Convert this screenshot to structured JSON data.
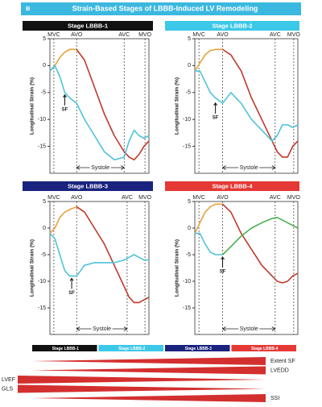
{
  "header": {
    "letter": "B",
    "title": "Strain-Based Stages of LBBB-Induced LV Remodeling",
    "color": "#3bb8e0"
  },
  "chart_data": [
    {
      "type": "line",
      "title": "Stage LBBB-1",
      "title_color": "#111111",
      "ylabel": "Longitudinal Strain (%)",
      "x": [
        0,
        5,
        10,
        15,
        20,
        27,
        35,
        45,
        55,
        65,
        75,
        80,
        85,
        90,
        95,
        100
      ],
      "xlim": [
        0,
        100
      ],
      "ylim": [
        -20,
        5
      ],
      "yticks": [
        5,
        0,
        -5,
        -10,
        -15
      ],
      "events": [
        {
          "label": "MVC",
          "x": 4
        },
        {
          "label": "AVO",
          "x": 27
        },
        {
          "label": "AVC",
          "x": 75
        },
        {
          "label": "MVO",
          "x": 96
        }
      ],
      "span": "Systole",
      "series": [
        {
          "color": "#e8a23a",
          "values": [
            -1,
            0,
            1.5,
            2.5,
            3,
            3,
            null,
            null,
            null,
            null,
            null,
            null,
            null,
            null,
            null,
            null
          ]
        },
        {
          "color": "#c0392b",
          "values": [
            null,
            null,
            null,
            null,
            null,
            3,
            1,
            -4,
            -9,
            -13,
            -16,
            -17,
            -17.5,
            -16.5,
            -15,
            -14
          ]
        },
        {
          "color": "#4fc3d9",
          "values": [
            -1,
            0,
            -2,
            -5,
            -6,
            -7,
            -10,
            -13,
            -16,
            -17.5,
            -17,
            -14,
            -12,
            -13,
            -13.5,
            -13
          ]
        }
      ],
      "annotations": [
        {
          "text": "SF",
          "x": 15,
          "y": -5
        }
      ]
    },
    {
      "type": "line",
      "title": "Stage LBBB-2",
      "title_color": "#3cc8e8",
      "ylabel": "Longitudinal Strain (%)",
      "x": [
        0,
        5,
        10,
        15,
        20,
        27,
        35,
        45,
        55,
        65,
        75,
        80,
        85,
        90,
        95,
        100
      ],
      "xlim": [
        0,
        100
      ],
      "ylim": [
        -20,
        5
      ],
      "yticks": [
        5,
        0,
        -5,
        -10,
        -15
      ],
      "events": [
        {
          "label": "MVC",
          "x": 4
        },
        {
          "label": "AVO",
          "x": 27
        },
        {
          "label": "AVC",
          "x": 78
        },
        {
          "label": "MVO",
          "x": 96
        }
      ],
      "span": "Systole",
      "series": [
        {
          "color": "#e8a23a",
          "values": [
            -1,
            0.5,
            2,
            2.8,
            3,
            3,
            null,
            null,
            null,
            null,
            null,
            null,
            null,
            null,
            null,
            null
          ]
        },
        {
          "color": "#c0392b",
          "values": [
            null,
            null,
            null,
            null,
            null,
            3,
            2,
            -1,
            -6,
            -10,
            -14,
            -16,
            -17,
            -17,
            -15,
            -14
          ]
        },
        {
          "color": "#4fc3d9",
          "values": [
            -1,
            -1,
            -3,
            -5,
            -6,
            -7,
            -5,
            -7,
            -10,
            -12,
            -14,
            -13,
            -11,
            -11,
            -11.5,
            -11
          ]
        }
      ],
      "annotations": [
        {
          "text": "SF",
          "x": 20,
          "y": -6.5
        }
      ]
    },
    {
      "type": "line",
      "title": "Stage LBBB-3",
      "title_color": "#1a237e",
      "ylabel": "Longitudinal Strain (%)",
      "x": [
        0,
        5,
        10,
        15,
        20,
        27,
        35,
        45,
        55,
        65,
        75,
        80,
        85,
        90,
        95,
        100
      ],
      "xlim": [
        0,
        100
      ],
      "ylim": [
        -20,
        5
      ],
      "yticks": [
        5,
        0,
        -5,
        -10,
        -15
      ],
      "events": [
        {
          "label": "MVC",
          "x": 4
        },
        {
          "label": "AVO",
          "x": 27
        },
        {
          "label": "AVC",
          "x": 78
        },
        {
          "label": "MVO",
          "x": 96
        }
      ],
      "span": "Systole",
      "series": [
        {
          "color": "#e8a23a",
          "values": [
            -1,
            0,
            2,
            3,
            3.5,
            4,
            null,
            null,
            null,
            null,
            null,
            null,
            null,
            null,
            null,
            null
          ]
        },
        {
          "color": "#c0392b",
          "values": [
            null,
            null,
            null,
            null,
            null,
            4,
            3,
            0,
            -3,
            -7,
            -11,
            -13,
            -14,
            -14,
            -13.5,
            -13
          ]
        },
        {
          "color": "#4fc3d9",
          "values": [
            -1,
            -2,
            -5,
            -8,
            -9,
            -9,
            -7,
            -6.5,
            -6.5,
            -6.5,
            -6,
            -5.5,
            -5,
            -5.5,
            -6,
            -6
          ]
        }
      ],
      "annotations": [
        {
          "text": "SF",
          "x": 22,
          "y": -9
        }
      ]
    },
    {
      "type": "line",
      "title": "Stage LBBB-4",
      "title_color": "#e53935",
      "ylabel": "Longitudinal Strain (%)",
      "x": [
        0,
        5,
        10,
        15,
        20,
        27,
        35,
        45,
        55,
        65,
        75,
        80,
        85,
        90,
        95,
        100
      ],
      "xlim": [
        0,
        100
      ],
      "ylim": [
        -20,
        5
      ],
      "yticks": [
        5,
        0,
        -5,
        -10,
        -15
      ],
      "events": [
        {
          "label": "MVC",
          "x": 4
        },
        {
          "label": "AVO",
          "x": 27
        },
        {
          "label": "AVC",
          "x": 78
        },
        {
          "label": "MVO",
          "x": 96
        }
      ],
      "span": "Systole",
      "series": [
        {
          "color": "#e8a23a",
          "values": [
            -1,
            1,
            3,
            4,
            4.5,
            4.5,
            null,
            null,
            null,
            null,
            null,
            null,
            null,
            null,
            null,
            null
          ]
        },
        {
          "color": "#c0392b",
          "values": [
            null,
            null,
            null,
            null,
            null,
            4.5,
            3,
            -1,
            -4,
            -7,
            -9,
            -10,
            -10.3,
            -10,
            -9,
            -8.5
          ]
        },
        {
          "color": "#4fc3d9",
          "values": [
            -1,
            -1,
            -3,
            -4.5,
            -5,
            -5,
            null,
            null,
            null,
            null,
            null,
            null,
            null,
            null,
            null,
            null
          ]
        },
        {
          "color": "#4caf50",
          "values": [
            null,
            null,
            null,
            null,
            null,
            -5,
            -3.5,
            -1.5,
            0,
            1,
            1.8,
            2,
            1.5,
            1,
            0.5,
            0
          ]
        }
      ],
      "annotations": [
        {
          "text": "SF",
          "x": 27,
          "y": -5
        }
      ]
    }
  ],
  "progression": {
    "stages": [
      {
        "label": "Stage LBBB-1",
        "color": "#111111"
      },
      {
        "label": "Stage LBBB-2",
        "color": "#3cc8e8"
      },
      {
        "label": "Stage LBBB-3",
        "color": "#1a237e"
      },
      {
        "label": "Stage LBBB-4",
        "color": "#e53935"
      }
    ],
    "wedge_color": "#d32f2f",
    "indicators": [
      {
        "label": "Extent SF",
        "direction": "increasing"
      },
      {
        "label": "LVEDD",
        "direction": "increasing"
      },
      {
        "label": "LVEF",
        "direction": "decreasing"
      },
      {
        "label": "GLS",
        "direction": "decreasing"
      },
      {
        "label": "SSI",
        "direction": "increasing"
      }
    ]
  }
}
